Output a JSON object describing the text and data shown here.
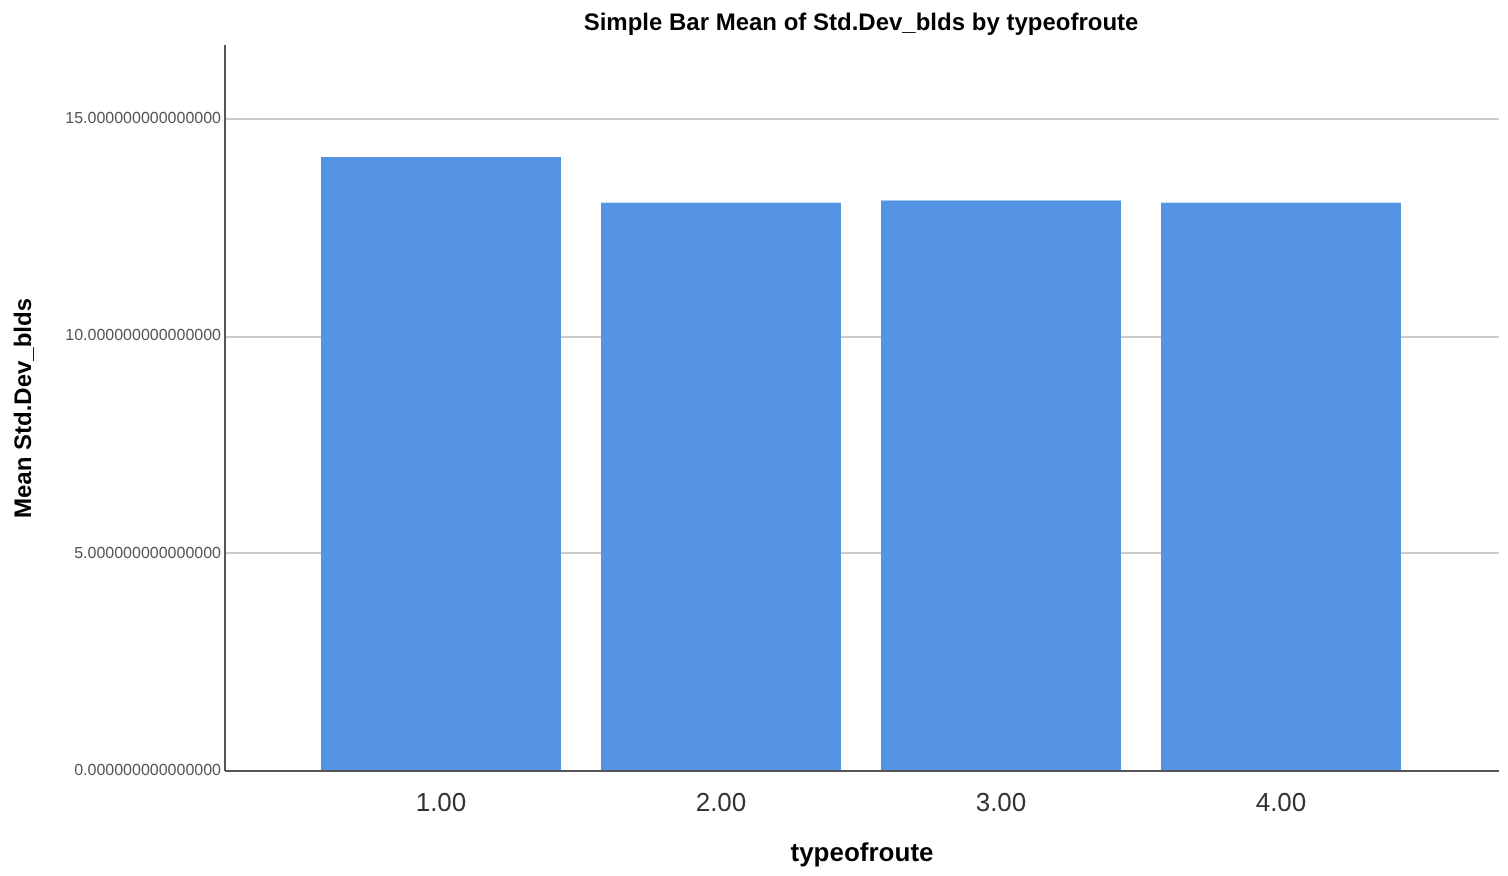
{
  "chart_data": {
    "type": "bar",
    "title": "Simple Bar Mean of Std.Dev_blds by typeofroute",
    "xlabel": "typeofroute",
    "ylabel": "Mean Std.Dev_blds",
    "categories": [
      "1.00",
      "2.00",
      "3.00",
      "4.00"
    ],
    "values": [
      14.1,
      13.05,
      13.1,
      13.05
    ],
    "color": "#5594e2",
    "ylim": [
      0,
      16.7
    ],
    "yticks": [
      {
        "value": 0,
        "label": "0.000000000000000"
      },
      {
        "value": 5,
        "label": "5.000000000000000"
      },
      {
        "value": 10,
        "label": "10.000000000000000"
      },
      {
        "value": 15,
        "label": "15.000000000000000"
      }
    ],
    "grid": "y"
  }
}
